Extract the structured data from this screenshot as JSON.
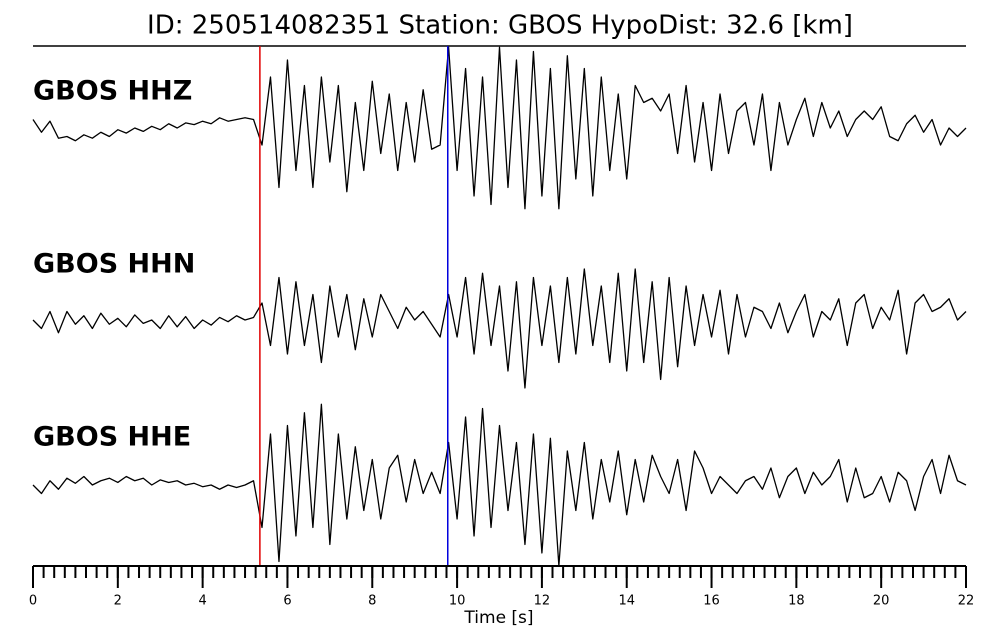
{
  "chart_data": {
    "type": "seismogram",
    "title": "ID: 250514082351   Station: GBOS   HypoDist:    32.6 [km]",
    "xlabel": "Time [s]",
    "label_color": "#3f8f0c",
    "xlim": [
      0,
      22
    ],
    "xticks": [
      0,
      2,
      4,
      6,
      8,
      10,
      12,
      14,
      16,
      18,
      20,
      22
    ],
    "xminorticks": [
      0,
      0.25,
      0.5,
      0.75,
      1,
      1.25,
      1.5,
      1.75,
      2,
      2.25,
      2.5,
      2.75,
      3,
      3.25,
      3.5,
      3.75,
      4,
      4.25,
      4.5,
      4.75,
      5,
      5.25,
      5.5,
      5.75,
      6,
      6.25,
      6.5,
      6.75,
      7,
      7.25,
      7.5,
      7.75,
      8,
      8.25,
      8.5,
      8.75,
      9,
      9.25,
      9.5,
      9.75,
      10,
      10.25,
      10.5,
      10.75,
      11,
      11.25,
      11.5,
      11.75,
      12,
      12.25,
      12.5,
      12.75,
      13,
      13.25,
      13.5,
      13.75,
      14,
      14.25,
      14.5,
      14.75,
      15,
      15.25,
      15.5,
      15.75,
      16,
      16.25,
      16.5,
      16.75,
      17,
      17.25,
      17.5,
      17.75,
      18,
      18.25,
      18.5,
      18.75,
      19,
      19.25,
      19.5,
      19.75,
      20,
      20.25,
      20.5,
      20.75,
      21,
      21.25,
      21.5,
      21.75,
      22
    ],
    "ylim": [
      -1,
      1
    ],
    "picks": [
      {
        "x": 5.35,
        "color": "#e00000"
      },
      {
        "x": 9.78,
        "color": "#0000dd"
      }
    ],
    "x": [
      0,
      0.2,
      0.4,
      0.6,
      0.8,
      1,
      1.2,
      1.4,
      1.6,
      1.8,
      2,
      2.2,
      2.4,
      2.6,
      2.8,
      3,
      3.2,
      3.4,
      3.6,
      3.8,
      4,
      4.2,
      4.4,
      4.6,
      4.8,
      5,
      5.2,
      5.4,
      5.6,
      5.8,
      6,
      6.2,
      6.4,
      6.6,
      6.8,
      7,
      7.2,
      7.4,
      7.6,
      7.8,
      8,
      8.2,
      8.4,
      8.6,
      8.8,
      9,
      9.2,
      9.4,
      9.6,
      9.8,
      10,
      10.2,
      10.4,
      10.6,
      10.8,
      11,
      11.2,
      11.4,
      11.6,
      11.8,
      12,
      12.2,
      12.4,
      12.6,
      12.8,
      13,
      13.2,
      13.4,
      13.6,
      13.8,
      14,
      14.2,
      14.4,
      14.6,
      14.8,
      15,
      15.2,
      15.4,
      15.6,
      15.8,
      16,
      16.2,
      16.4,
      16.6,
      16.8,
      17,
      17.2,
      17.4,
      17.6,
      17.8,
      18,
      18.2,
      18.4,
      18.6,
      18.8,
      19,
      19.2,
      19.4,
      19.6,
      19.8,
      20,
      20.2,
      20.4,
      20.6,
      20.8,
      21,
      21.2,
      21.4,
      21.6,
      21.8,
      22
    ],
    "series": [
      {
        "name": "GBOS HHZ",
        "color": "#000000",
        "values": [
          0.1,
          -0.05,
          0.08,
          -0.12,
          -0.1,
          -0.15,
          -0.08,
          -0.12,
          -0.05,
          -0.1,
          -0.02,
          -0.06,
          0.0,
          -0.04,
          0.02,
          -0.02,
          0.05,
          0.0,
          0.06,
          0.04,
          0.08,
          0.05,
          0.12,
          0.08,
          0.1,
          0.12,
          0.1,
          -0.2,
          0.6,
          -0.7,
          0.8,
          -0.5,
          0.5,
          -0.7,
          0.6,
          -0.4,
          0.5,
          -0.75,
          0.3,
          -0.5,
          0.55,
          -0.3,
          0.4,
          -0.5,
          0.3,
          -0.4,
          0.45,
          -0.25,
          -0.2,
          0.95,
          -0.5,
          0.7,
          -0.8,
          0.6,
          -0.9,
          0.95,
          -0.7,
          0.8,
          -0.95,
          0.9,
          -0.8,
          0.7,
          -0.95,
          0.85,
          -0.6,
          0.7,
          -0.8,
          0.6,
          -0.5,
          0.4,
          -0.6,
          0.5,
          0.3,
          0.35,
          0.2,
          0.4,
          -0.3,
          0.5,
          -0.4,
          0.3,
          -0.5,
          0.4,
          -0.3,
          0.2,
          0.3,
          -0.2,
          0.4,
          -0.5,
          0.3,
          -0.2,
          0.1,
          0.35,
          -0.1,
          0.3,
          0.0,
          0.2,
          -0.1,
          0.1,
          0.2,
          0.1,
          0.25,
          -0.1,
          -0.15,
          0.05,
          0.15,
          -0.05,
          0.1,
          -0.2,
          0.0,
          -0.1,
          0.0
        ]
      },
      {
        "name": "GBOS HHN",
        "color": "#000000",
        "values": [
          0.0,
          -0.1,
          0.1,
          -0.15,
          0.1,
          -0.05,
          0.05,
          -0.1,
          0.08,
          -0.05,
          0.02,
          -0.08,
          0.06,
          -0.04,
          0.0,
          -0.1,
          0.05,
          -0.08,
          0.04,
          -0.1,
          0.0,
          -0.06,
          0.03,
          -0.02,
          0.05,
          0.0,
          0.03,
          0.2,
          -0.3,
          0.5,
          -0.4,
          0.45,
          -0.3,
          0.3,
          -0.5,
          0.4,
          -0.2,
          0.3,
          -0.35,
          0.25,
          -0.2,
          0.3,
          0.1,
          -0.1,
          0.15,
          0.0,
          0.1,
          -0.05,
          -0.2,
          0.3,
          -0.2,
          0.5,
          -0.4,
          0.55,
          -0.3,
          0.4,
          -0.6,
          0.45,
          -0.8,
          0.5,
          -0.3,
          0.4,
          -0.5,
          0.5,
          -0.4,
          0.6,
          -0.3,
          0.4,
          -0.5,
          0.55,
          -0.6,
          0.6,
          -0.5,
          0.45,
          -0.7,
          0.5,
          -0.55,
          0.4,
          -0.3,
          0.3,
          -0.2,
          0.35,
          -0.4,
          0.3,
          -0.2,
          0.15,
          0.1,
          -0.1,
          0.2,
          -0.15,
          0.1,
          0.3,
          -0.2,
          0.1,
          0.0,
          0.25,
          -0.3,
          0.2,
          0.3,
          -0.1,
          0.15,
          0.0,
          0.35,
          -0.4,
          0.2,
          0.3,
          0.1,
          0.15,
          0.25,
          0.0,
          0.1
        ]
      },
      {
        "name": "GBOS HHE",
        "color": "#000000",
        "values": [
          0.0,
          -0.1,
          0.05,
          -0.05,
          0.08,
          0.02,
          0.1,
          0.0,
          0.05,
          0.08,
          0.03,
          0.1,
          0.05,
          0.08,
          0.0,
          0.06,
          0.03,
          0.05,
          0.0,
          0.02,
          -0.02,
          0.0,
          -0.05,
          0.0,
          -0.03,
          0.0,
          0.05,
          -0.5,
          0.6,
          -0.9,
          0.7,
          -0.6,
          0.85,
          -0.5,
          0.95,
          -0.7,
          0.6,
          -0.4,
          0.45,
          -0.3,
          0.3,
          -0.4,
          0.2,
          0.35,
          -0.2,
          0.3,
          -0.1,
          0.15,
          -0.1,
          0.5,
          -0.4,
          0.8,
          -0.6,
          0.9,
          -0.5,
          0.7,
          -0.3,
          0.5,
          -0.7,
          0.6,
          -0.8,
          0.55,
          -0.95,
          0.4,
          -0.3,
          0.5,
          -0.4,
          0.3,
          -0.2,
          0.4,
          -0.35,
          0.3,
          -0.2,
          0.35,
          0.1,
          -0.1,
          0.3,
          -0.3,
          0.4,
          0.2,
          -0.1,
          0.1,
          0.0,
          -0.1,
          0.05,
          0.1,
          -0.05,
          0.2,
          -0.15,
          0.1,
          0.2,
          -0.1,
          0.15,
          0.0,
          0.1,
          0.3,
          -0.2,
          0.2,
          -0.15,
          -0.1,
          0.1,
          -0.2,
          0.15,
          0.05,
          -0.3,
          0.1,
          0.3,
          -0.1,
          0.35,
          0.05,
          0.0
        ]
      }
    ]
  }
}
